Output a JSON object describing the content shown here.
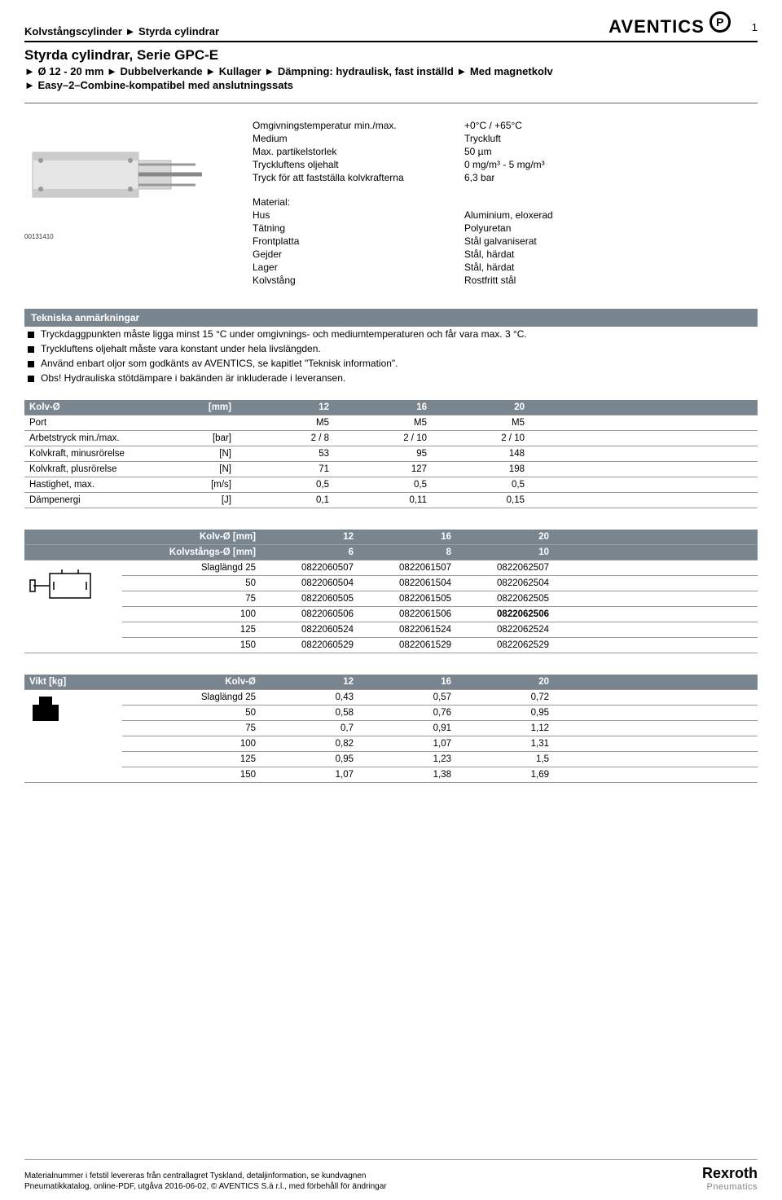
{
  "header": {
    "breadcrumb": "Kolvstångscylinder ► Styrda cylindrar",
    "brand": "AVENTICS",
    "page_number": "1"
  },
  "title": "Styrda cylindrar, Serie GPC-E",
  "subtitle": "► Ø 12 - 20 mm ► Dubbelverkande ► Kullager ► Dämpning: hydraulisk, fast inställd ► Med magnetkolv",
  "subtitle2": "► Easy–2–Combine-kompatibel med anslutningssats",
  "image_id": "00131410",
  "specs": [
    {
      "k": "Omgivningstemperatur min./max.",
      "v": "+0°C / +65°C"
    },
    {
      "k": "Medium",
      "v": "Tryckluft"
    },
    {
      "k": "Max. partikelstorlek",
      "v": "50 µm"
    },
    {
      "k": "Tryckluftens oljehalt",
      "v": "0 mg/m³ - 5 mg/m³"
    },
    {
      "k": "Tryck för att fastställa kolvkrafterna",
      "v": "6,3 bar"
    }
  ],
  "material_heading": "Material:",
  "materials": [
    {
      "k": "Hus",
      "v": "Aluminium, eloxerad"
    },
    {
      "k": "Tätning",
      "v": "Polyuretan"
    },
    {
      "k": "Frontplatta",
      "v": "Stål galvaniserat"
    },
    {
      "k": "Gejder",
      "v": "Stål, härdat"
    },
    {
      "k": "Lager",
      "v": "Stål, härdat"
    },
    {
      "k": "Kolvstång",
      "v": "Rostfritt stål"
    }
  ],
  "notes": {
    "header": "Tekniska anmärkningar",
    "items": [
      "Tryckdaggpunkten måste ligga minst 15 °C under omgivnings- och mediumtemperaturen och får vara max. 3 °C.",
      "Tryckluftens oljehalt måste vara konstant under hela livslängden.",
      "Använd enbart oljor som godkänts av AVENTICS, se kapitlet \"Teknisk information\".",
      "Obs! Hydrauliska stötdämpare i bakänden är inkluderade i leveransen."
    ]
  },
  "table1": {
    "headers": [
      "Kolv-Ø",
      "[mm]",
      "12",
      "16",
      "20",
      ""
    ],
    "rows": [
      [
        "Port",
        "",
        "M5",
        "M5",
        "M5",
        ""
      ],
      [
        "Arbetstryck min./max.",
        "[bar]",
        "2 / 8",
        "2 / 10",
        "2 / 10",
        ""
      ],
      [
        "Kolvkraft, minusrörelse",
        "[N]",
        "53",
        "95",
        "148",
        ""
      ],
      [
        "Kolvkraft, plusrörelse",
        "[N]",
        "71",
        "127",
        "198",
        ""
      ],
      [
        "Hastighet, max.",
        "[m/s]",
        "0,5",
        "0,5",
        "0,5",
        ""
      ],
      [
        "Dämpenergi",
        "[J]",
        "0,1",
        "0,11",
        "0,15",
        ""
      ]
    ]
  },
  "table2": {
    "header_rows": [
      [
        "",
        "Kolv-Ø [mm]",
        "12",
        "16",
        "20",
        ""
      ],
      [
        "",
        "Kolvstångs-Ø [mm]",
        "6",
        "8",
        "10",
        ""
      ]
    ],
    "rows": [
      [
        "Slaglängd 25",
        "0822060507",
        "0822061507",
        "0822062507",
        ""
      ],
      [
        "50",
        "0822060504",
        "0822061504",
        "0822062504",
        ""
      ],
      [
        "75",
        "0822060505",
        "0822061505",
        "0822062505",
        ""
      ],
      [
        "100",
        "0822060506",
        "0822061506",
        "0822062506",
        ""
      ],
      [
        "125",
        "0822060524",
        "0822061524",
        "0822062524",
        ""
      ],
      [
        "150",
        "0822060529",
        "0822061529",
        "0822062529",
        ""
      ]
    ],
    "bold_cell": {
      "row": 3,
      "col": 3
    }
  },
  "table3": {
    "headers": [
      "Vikt [kg]",
      "Kolv-Ø",
      "12",
      "16",
      "20",
      ""
    ],
    "rows": [
      [
        "Slaglängd 25",
        "0,43",
        "0,57",
        "0,72",
        ""
      ],
      [
        "50",
        "0,58",
        "0,76",
        "0,95",
        ""
      ],
      [
        "75",
        "0,7",
        "0,91",
        "1,12",
        ""
      ],
      [
        "100",
        "0,82",
        "1,07",
        "1,31",
        ""
      ],
      [
        "125",
        "0,95",
        "1,23",
        "1,5",
        ""
      ],
      [
        "150",
        "1,07",
        "1,38",
        "1,69",
        ""
      ]
    ]
  },
  "footer": {
    "line1": "Materialnummer i fetstil levereras från centrallagret Tyskland, detaljinformation, se kundvagnen",
    "line2": "Pneumatikkatalog, online-PDF, utgåva 2016-06-02, © AVENTICS S.à r.l., med förbehåll för ändringar",
    "logo1": "Rexroth",
    "logo2": "Pneumatics"
  },
  "colors": {
    "header_bg": "#7a868f",
    "header_fg": "#ffffff",
    "border": "#999999"
  }
}
